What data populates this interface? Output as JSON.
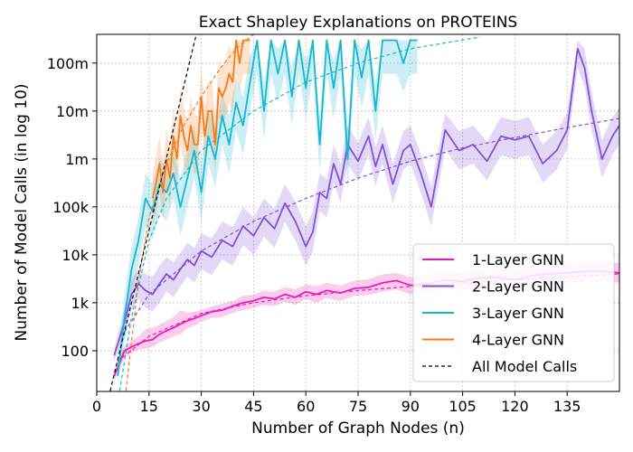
{
  "chart_data": {
    "type": "line",
    "title": "Exact Shapley Explanations on PROTEINS",
    "xlabel": "Number of Graph Nodes (n)",
    "ylabel": "Number of Model Calls (in log 10)",
    "xlim": [
      0,
      150
    ],
    "ylim_log10": [
      1.15,
      8.6
    ],
    "y_scale": "log",
    "grid": true,
    "legend_position": "lower-right",
    "x_ticks": [
      0,
      15,
      30,
      45,
      60,
      75,
      90,
      105,
      120,
      135
    ],
    "x_tick_labels": [
      "0",
      "15",
      "30",
      "45",
      "60",
      "75",
      "90",
      "105",
      "120",
      "135"
    ],
    "y_ticks": [
      100,
      1000,
      10000,
      100000,
      1000000,
      10000000,
      100000000
    ],
    "y_tick_labels": [
      "100",
      "1k",
      "10k",
      "100k",
      "1m",
      "10m",
      "100m"
    ],
    "series": [
      {
        "name": "1-Layer GNN",
        "color": "#e81cb4",
        "style": "solid",
        "x": [
          5,
          8,
          10,
          12,
          14,
          16,
          18,
          20,
          22,
          24,
          26,
          28,
          30,
          33,
          36,
          39,
          42,
          45,
          48,
          51,
          54,
          57,
          60,
          63,
          66,
          70,
          74,
          78,
          82,
          86,
          90,
          95,
          100,
          105,
          110,
          115,
          120,
          125,
          130,
          135,
          140,
          145,
          150
        ],
        "y": [
          30,
          100,
          120,
          140,
          160,
          170,
          220,
          260,
          300,
          360,
          420,
          470,
          540,
          650,
          700,
          850,
          1000,
          1100,
          1300,
          1200,
          1500,
          1300,
          1700,
          1500,
          1800,
          1600,
          2000,
          2100,
          2600,
          2900,
          2300,
          2500,
          3000,
          2800,
          3300,
          3400,
          3000,
          3700,
          4000,
          4200,
          4500,
          4600,
          4200
        ],
        "band_upper": [
          40,
          130,
          160,
          200,
          280,
          300,
          350,
          420,
          500,
          700,
          620,
          650,
          700,
          850,
          950,
          1100,
          1400,
          1500,
          1800,
          1700,
          2100,
          1900,
          2400,
          2200,
          2600,
          2300,
          2900,
          3100,
          3900,
          4200,
          3400,
          4000,
          4600,
          4200,
          5200,
          5400,
          4800,
          5900,
          6300,
          6600,
          7200,
          7400,
          6700
        ],
        "band_lower": [
          22,
          75,
          90,
          105,
          110,
          120,
          150,
          170,
          200,
          220,
          290,
          330,
          400,
          480,
          500,
          620,
          700,
          780,
          900,
          850,
          1050,
          900,
          1200,
          1000,
          1250,
          1100,
          1400,
          1450,
          1700,
          1900,
          1500,
          1600,
          1900,
          1800,
          2100,
          2100,
          1900,
          2300,
          2500,
          2600,
          2800,
          2800,
          2600
        ]
      },
      {
        "name": "2-Layer GNN",
        "color": "#8050d8",
        "style": "solid",
        "x": [
          5,
          8,
          10,
          12,
          14,
          16,
          18,
          20,
          22,
          24,
          26,
          28,
          30,
          33,
          36,
          39,
          42,
          45,
          48,
          51,
          54,
          57,
          60,
          62,
          64,
          66,
          68,
          70,
          72,
          75,
          78,
          80,
          82,
          85,
          88,
          90,
          93,
          96,
          100,
          104,
          108,
          112,
          116,
          120,
          124,
          128,
          132,
          135,
          138,
          140,
          142,
          145,
          148,
          150
        ],
        "y": [
          80,
          400,
          1500,
          2500,
          1800,
          1500,
          2500,
          4000,
          3000,
          5000,
          8000,
          6000,
          12000,
          9000,
          20000,
          15000,
          40000,
          25000,
          60000,
          35000,
          120000,
          50000,
          15000,
          30000,
          200000,
          150000,
          800000,
          300000,
          2000000,
          900000,
          3000000,
          700000,
          2000000,
          300000,
          1500000,
          2000000,
          500000,
          100000,
          4000000,
          1500000,
          2000000,
          900000,
          3000000,
          2500000,
          3000000,
          800000,
          1500000,
          4000000,
          200000000,
          80000000,
          10000000,
          1000000,
          3000000,
          5000000
        ],
        "band_upper": [
          110,
          800,
          3000,
          5000,
          4000,
          3500,
          6000,
          9000,
          7000,
          11000,
          18000,
          14000,
          28000,
          22000,
          50000,
          38000,
          100000,
          60000,
          150000,
          90000,
          300000,
          130000,
          40000,
          80000,
          500000,
          380000,
          2000000,
          800000,
          5000000,
          2200000,
          7500000,
          1800000,
          5000000,
          800000,
          3800000,
          5000000,
          1300000,
          260000,
          9000000,
          3800000,
          5000000,
          2300000,
          7500000,
          6200000,
          7500000,
          2000000,
          3800000,
          9500000,
          300000000,
          200000000,
          25000000,
          2500000,
          7500000,
          12000000
        ],
        "band_lower": [
          60,
          200,
          700,
          1200,
          800,
          650,
          1000,
          1700,
          1300,
          2200,
          3500,
          2600,
          5000,
          3800,
          8000,
          6000,
          16000,
          10000,
          24000,
          14000,
          48000,
          20000,
          6000,
          12000,
          80000,
          60000,
          320000,
          120000,
          800000,
          360000,
          1200000,
          280000,
          800000,
          120000,
          600000,
          800000,
          200000,
          40000,
          1600000,
          600000,
          800000,
          360000,
          1200000,
          1000000,
          1200000,
          320000,
          600000,
          1600000,
          80000000,
          32000000,
          4000000,
          400000,
          1200000,
          2000000
        ]
      },
      {
        "name": "3-Layer GNN",
        "color": "#17b6d0",
        "style": "solid",
        "x": [
          6,
          8,
          10,
          12,
          14,
          16,
          18,
          20,
          22,
          24,
          26,
          28,
          30,
          32,
          34,
          36,
          38,
          40,
          42,
          44,
          46,
          48,
          50,
          52,
          54,
          56,
          58,
          60,
          62,
          64,
          66,
          68,
          70,
          72,
          74,
          76,
          78,
          80,
          82,
          84,
          86,
          88,
          90,
          92
        ],
        "y": [
          30,
          500,
          5000,
          20000,
          150000,
          80000,
          300000,
          200000,
          500000,
          100000,
          400000,
          1500000,
          200000,
          3000000,
          1000000,
          8000000,
          2000000,
          15000000,
          5000000,
          40000000,
          300000000,
          10000000,
          300000000,
          60000000,
          300000000,
          20000000,
          300000000,
          30000000,
          300000000,
          2000000,
          300000000,
          30000000,
          300000000,
          1000000,
          300000000,
          50000000,
          300000000,
          10000000,
          300000000,
          300000000,
          300000000,
          100000000,
          300000000,
          300000000
        ],
        "band_upper": [
          50,
          1500,
          15000,
          60000,
          500000,
          300000,
          1000000,
          700000,
          1500000,
          400000,
          1500000,
          5000000,
          800000,
          10000000,
          4000000,
          25000000,
          8000000,
          50000000,
          20000000,
          150000000,
          300000000,
          40000000,
          300000000,
          200000000,
          300000000,
          80000000,
          300000000,
          120000000,
          300000000,
          8000000,
          300000000,
          120000000,
          300000000,
          4000000,
          300000000,
          200000000,
          300000000,
          40000000,
          300000000,
          300000000,
          300000000,
          300000000,
          300000000,
          300000000
        ],
        "band_lower": [
          20,
          150,
          1500,
          6000,
          40000,
          20000,
          80000,
          50000,
          150000,
          25000,
          100000,
          400000,
          50000,
          800000,
          250000,
          2000000,
          500000,
          4000000,
          1200000,
          10000000,
          60000000,
          2500000,
          60000000,
          15000000,
          60000000,
          5000000,
          60000000,
          7000000,
          60000000,
          500000,
          60000000,
          7000000,
          60000000,
          250000,
          60000000,
          12000000,
          60000000,
          2500000,
          60000000,
          60000000,
          60000000,
          25000000,
          60000000,
          60000000
        ]
      },
      {
        "name": "4-Layer GNN",
        "color": "#f57c1a",
        "style": "solid",
        "x": [
          16,
          17,
          18,
          19,
          20,
          21,
          22,
          23,
          24,
          25,
          26,
          27,
          28,
          29,
          30,
          31,
          32,
          33,
          34,
          35,
          36,
          37,
          38,
          39,
          40,
          41,
          42,
          43,
          44
        ],
        "y": [
          150000,
          300000,
          800000,
          200000,
          1000000,
          400000,
          3000000,
          1000000,
          8000000,
          3000000,
          1500000,
          5000000,
          2000000,
          2000000,
          20000000,
          3000000,
          10000000,
          10000000,
          2000000,
          30000000,
          20000000,
          30000000,
          60000000,
          40000000,
          300000000,
          100000000,
          300000000,
          300000000,
          300000000
        ],
        "band_upper": [
          500000,
          1200000,
          3000000,
          800000,
          4000000,
          1600000,
          12000000,
          4000000,
          30000000,
          12000000,
          6000000,
          20000000,
          8000000,
          8000000,
          80000000,
          12000000,
          40000000,
          40000000,
          8000000,
          120000000,
          80000000,
          120000000,
          240000000,
          160000000,
          300000000,
          300000000,
          300000000,
          300000000,
          300000000
        ],
        "band_lower": [
          40000,
          70000,
          200000,
          50000,
          250000,
          100000,
          750000,
          250000,
          2000000,
          750000,
          375000,
          1250000,
          500000,
          500000,
          5000000,
          750000,
          2500000,
          2500000,
          500000,
          7500000,
          5000000,
          7500000,
          15000000,
          10000000,
          60000000,
          25000000,
          60000000,
          60000000,
          60000000
        ]
      },
      {
        "name": "All Model Calls",
        "color": "#000000",
        "style": "dashed",
        "x": [
          3,
          6,
          9,
          12,
          15,
          18,
          21,
          24,
          27,
          30
        ],
        "y": [
          8,
          64,
          512,
          4096,
          32768,
          262144,
          2097152,
          16777216,
          134217728,
          1073741824
        ]
      }
    ],
    "trend_lines": [
      {
        "color": "#e81cb4",
        "x": [
          6,
          15,
          30,
          45,
          60,
          75,
          90,
          105,
          120,
          135,
          150
        ],
        "y": [
          60,
          200,
          600,
          1000,
          1400,
          1800,
          2200,
          2600,
          3000,
          3500,
          4000
        ]
      },
      {
        "color": "#8050d8",
        "x": [
          8,
          15,
          30,
          45,
          60,
          75,
          90,
          105,
          120,
          135,
          150
        ],
        "y": [
          250,
          1500,
          12000,
          50000,
          150000,
          400000,
          900000,
          1700000,
          2800000,
          4500000,
          7000000
        ]
      },
      {
        "color": "#17b6d0",
        "x": [
          6,
          10,
          15,
          20,
          30,
          45,
          60,
          75,
          90,
          110
        ],
        "y": [
          8,
          500,
          20000,
          150000,
          1500000,
          10000000,
          40000000,
          100000000,
          200000000,
          350000000
        ]
      },
      {
        "color": "#f57c1a",
        "x": [
          8,
          12,
          15,
          20,
          25,
          30,
          35,
          40,
          45
        ],
        "y": [
          8,
          3000,
          60000,
          800000,
          5000000,
          20000000,
          70000000,
          200000000,
          400000000
        ]
      }
    ]
  }
}
